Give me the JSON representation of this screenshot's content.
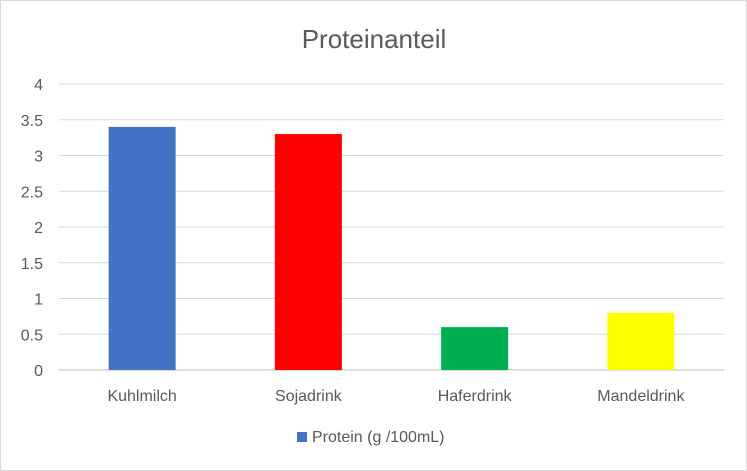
{
  "chart_data": {
    "type": "bar",
    "title": "Proteinanteil",
    "xlabel": "",
    "ylabel": "",
    "categories": [
      "Kuhlmilch",
      "Sojadrink",
      "Haferdrink",
      "Mandeldrink"
    ],
    "series": [
      {
        "name": "Protein (g /100mL)",
        "values": [
          3.4,
          3.3,
          0.6,
          0.8
        ],
        "colors": [
          "#4472C4",
          "#FF0000",
          "#00B050",
          "#FFFF00"
        ]
      }
    ],
    "legend_color": "#4472C4",
    "ylim": [
      0,
      4
    ],
    "yticks": [
      "0",
      "0.5",
      "1",
      "1.5",
      "2",
      "2.5",
      "3",
      "3.5",
      "4"
    ],
    "grid": true,
    "legend_position": "bottom"
  }
}
